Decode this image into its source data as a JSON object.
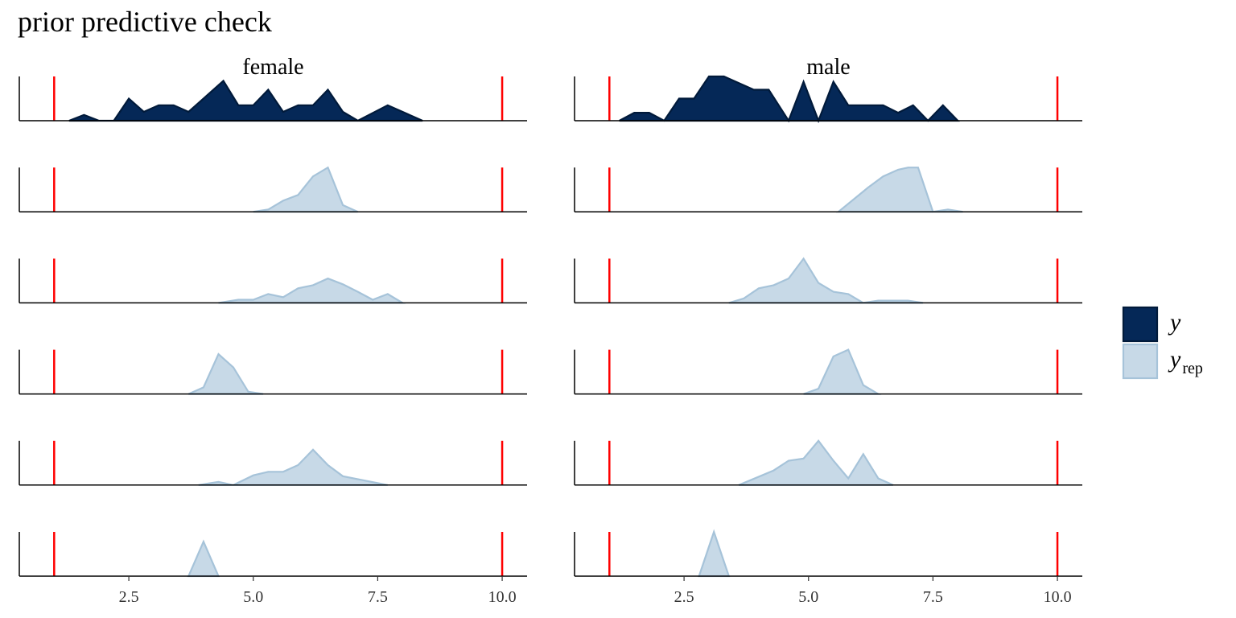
{
  "title": "prior predictive check",
  "colors": {
    "y_fill": "#052857",
    "y_line": "#011a3a",
    "yrep_fill": "#c7d9e7",
    "yrep_line": "#a6c3d9",
    "vline": "#ff0000",
    "axis": "#000000"
  },
  "chart_data": {
    "type": "area",
    "title": "prior predictive check",
    "facets": [
      "female",
      "male"
    ],
    "xlim": [
      0.3,
      10.5
    ],
    "x_ticks": [
      2.5,
      5.0,
      7.5,
      10.0
    ],
    "x_tick_labels": [
      "2.5",
      "5.0",
      "7.5",
      "10.0"
    ],
    "vlines": [
      1,
      10
    ],
    "legend": {
      "position": "right",
      "items": [
        {
          "key": "y",
          "label": "y"
        },
        {
          "key": "yrep",
          "label": "y",
          "subscript": "rep"
        }
      ]
    },
    "rows": [
      {
        "series": "y",
        "female": [
          [
            1.3,
            0
          ],
          [
            1.6,
            0.13
          ],
          [
            1.9,
            0
          ],
          [
            2.2,
            0
          ],
          [
            2.5,
            0.5
          ],
          [
            2.8,
            0.2
          ],
          [
            3.1,
            0.35
          ],
          [
            3.4,
            0.35
          ],
          [
            3.7,
            0.2
          ],
          [
            4.4,
            0.9
          ],
          [
            4.7,
            0.35
          ],
          [
            5.0,
            0.35
          ],
          [
            5.3,
            0.7
          ],
          [
            5.6,
            0.2
          ],
          [
            5.9,
            0.35
          ],
          [
            6.2,
            0.35
          ],
          [
            6.5,
            0.7
          ],
          [
            6.8,
            0.2
          ],
          [
            7.1,
            0
          ],
          [
            7.7,
            0.35
          ],
          [
            8.4,
            0
          ]
        ],
        "male": [
          [
            1.2,
            0
          ],
          [
            1.5,
            0.18
          ],
          [
            1.8,
            0.18
          ],
          [
            2.1,
            0
          ],
          [
            2.4,
            0.5
          ],
          [
            2.7,
            0.5
          ],
          [
            3.0,
            1.0
          ],
          [
            3.3,
            1.0
          ],
          [
            3.9,
            0.7
          ],
          [
            4.2,
            0.7
          ],
          [
            4.6,
            0
          ],
          [
            4.9,
            0.88
          ],
          [
            5.2,
            0
          ],
          [
            5.5,
            0.88
          ],
          [
            5.8,
            0.35
          ],
          [
            6.5,
            0.35
          ],
          [
            6.8,
            0.18
          ],
          [
            7.1,
            0.35
          ],
          [
            7.4,
            0
          ],
          [
            7.7,
            0.35
          ],
          [
            8.0,
            0
          ]
        ]
      },
      {
        "series": "yrep",
        "female": [
          [
            5.0,
            0
          ],
          [
            5.3,
            0.05
          ],
          [
            5.6,
            0.25
          ],
          [
            5.9,
            0.38
          ],
          [
            6.2,
            0.8
          ],
          [
            6.5,
            1.0
          ],
          [
            6.8,
            0.15
          ],
          [
            7.1,
            0
          ]
        ],
        "male": [
          [
            5.6,
            0
          ],
          [
            6.2,
            0.55
          ],
          [
            6.5,
            0.8
          ],
          [
            6.8,
            0.95
          ],
          [
            7.0,
            1.0
          ],
          [
            7.2,
            1.0
          ],
          [
            7.5,
            0
          ],
          [
            7.8,
            0.05
          ],
          [
            8.1,
            0
          ]
        ]
      },
      {
        "series": "yrep",
        "female": [
          [
            4.3,
            0
          ],
          [
            4.7,
            0.07
          ],
          [
            5.0,
            0.07
          ],
          [
            5.3,
            0.2
          ],
          [
            5.6,
            0.13
          ],
          [
            5.9,
            0.33
          ],
          [
            6.2,
            0.4
          ],
          [
            6.5,
            0.55
          ],
          [
            6.8,
            0.42
          ],
          [
            7.1,
            0.25
          ],
          [
            7.4,
            0.07
          ],
          [
            7.7,
            0.2
          ],
          [
            8.0,
            0
          ]
        ],
        "male": [
          [
            3.4,
            0
          ],
          [
            3.7,
            0.1
          ],
          [
            4.0,
            0.33
          ],
          [
            4.3,
            0.4
          ],
          [
            4.6,
            0.55
          ],
          [
            4.9,
            1.0
          ],
          [
            5.2,
            0.45
          ],
          [
            5.5,
            0.25
          ],
          [
            5.8,
            0.2
          ],
          [
            6.1,
            0
          ],
          [
            6.4,
            0.05
          ],
          [
            7.0,
            0.05
          ],
          [
            7.3,
            0
          ]
        ]
      },
      {
        "series": "yrep",
        "female": [
          [
            3.7,
            0
          ],
          [
            4.0,
            0.15
          ],
          [
            4.3,
            0.9
          ],
          [
            4.6,
            0.6
          ],
          [
            4.9,
            0.05
          ],
          [
            5.2,
            0
          ]
        ],
        "male": [
          [
            4.9,
            0
          ],
          [
            5.2,
            0.12
          ],
          [
            5.5,
            0.85
          ],
          [
            5.8,
            1.0
          ],
          [
            6.1,
            0.2
          ],
          [
            6.4,
            0
          ]
        ]
      },
      {
        "series": "yrep",
        "female": [
          [
            3.9,
            0
          ],
          [
            4.3,
            0.07
          ],
          [
            4.6,
            0
          ],
          [
            5.0,
            0.22
          ],
          [
            5.3,
            0.3
          ],
          [
            5.6,
            0.3
          ],
          [
            5.9,
            0.45
          ],
          [
            6.2,
            0.8
          ],
          [
            6.5,
            0.45
          ],
          [
            6.8,
            0.2
          ],
          [
            7.7,
            0
          ]
        ],
        "male": [
          [
            3.6,
            0
          ],
          [
            4.3,
            0.33
          ],
          [
            4.6,
            0.55
          ],
          [
            4.9,
            0.6
          ],
          [
            5.2,
            1.0
          ],
          [
            5.5,
            0.55
          ],
          [
            5.8,
            0.15
          ],
          [
            6.1,
            0.7
          ],
          [
            6.4,
            0.15
          ],
          [
            6.7,
            0
          ]
        ]
      },
      {
        "series": "yrep",
        "female": [
          [
            3.7,
            0
          ],
          [
            4.0,
            0.78
          ],
          [
            4.3,
            0
          ]
        ],
        "male": [
          [
            2.8,
            0
          ],
          [
            3.1,
            1.0
          ],
          [
            3.4,
            0
          ]
        ]
      }
    ]
  }
}
